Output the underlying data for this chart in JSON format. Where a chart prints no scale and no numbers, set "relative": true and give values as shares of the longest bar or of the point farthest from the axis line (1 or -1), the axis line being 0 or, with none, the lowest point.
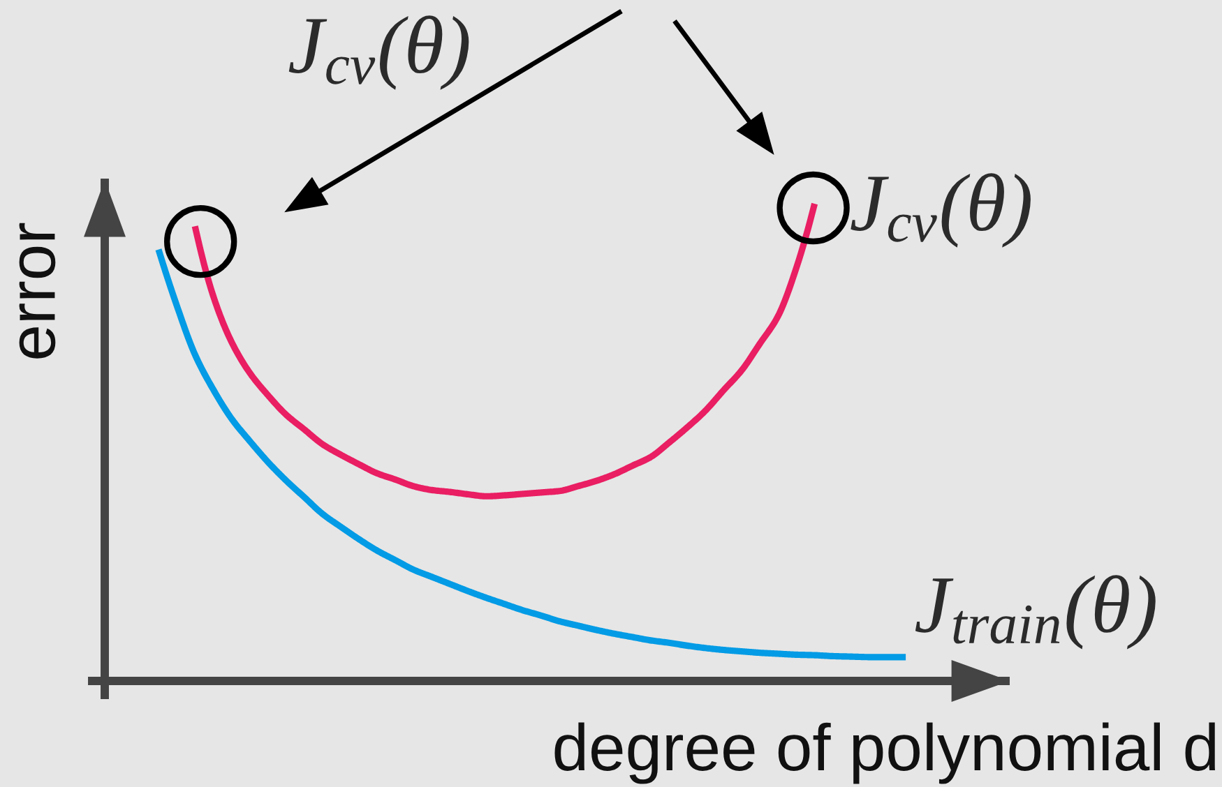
{
  "chart_data": {
    "type": "line",
    "xlabel": "degree of polynomial d",
    "ylabel": "error",
    "annotations": [
      "J$_{cv}$(θ)"
    ],
    "relative": true,
    "categories": [
      null,
      null,
      null,
      null,
      null,
      null,
      null,
      null,
      null,
      null,
      null,
      null,
      null,
      null,
      null,
      null,
      null,
      null,
      null,
      null,
      null,
      null,
      null,
      null,
      null,
      null,
      null,
      null,
      null,
      null,
      null,
      null,
      null,
      null,
      null,
      null,
      null,
      null,
      null,
      null,
      null,
      null
    ],
    "series": [
      {
        "name": "J$_{cv}$(θ)",
        "color": "#e91e63",
        "values": [
          null,
          null,
          0.953,
          0.807,
          0.711,
          0.646,
          0.599,
          0.558,
          0.527,
          0.496,
          0.474,
          0.454,
          0.435,
          0.422,
          0.408,
          0.4,
          0.396,
          0.391,
          0.387,
          0.389,
          0.392,
          0.395,
          0.398,
          0.408,
          0.419,
          0.433,
          0.451,
          0.469,
          0.499,
          0.531,
          0.566,
          0.609,
          0.651,
          0.707,
          0.765,
          0.866,
          1.0,
          null,
          null,
          null,
          null,
          null
        ]
      },
      {
        "name": "J$_{train}$(θ)",
        "color": "#039be5",
        "values": [
          0.904,
          0.787,
          0.684,
          0.611,
          0.55,
          0.503,
          0.459,
          0.42,
          0.385,
          0.35,
          0.323,
          0.297,
          0.273,
          0.253,
          0.233,
          0.218,
          0.203,
          0.188,
          0.174,
          0.161,
          0.148,
          0.137,
          0.125,
          0.116,
          0.107,
          0.099,
          0.092,
          0.085,
          0.08,
          0.074,
          0.069,
          0.065,
          0.062,
          0.059,
          0.057,
          0.055,
          0.054,
          0.052,
          0.051,
          0.05,
          0.05,
          0.05
        ]
      }
    ]
  }
}
